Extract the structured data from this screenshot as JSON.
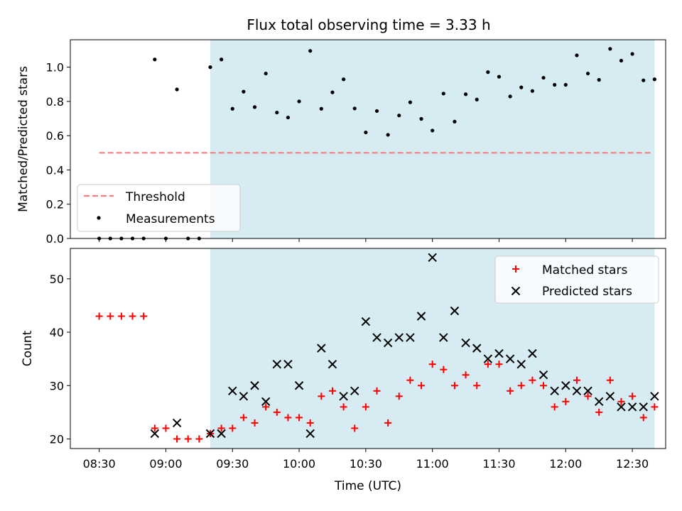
{
  "chart_data": [
    {
      "type": "scatter",
      "title": "Flux total observing time = 3.33 h",
      "xlabel": "",
      "ylabel": "Matched/Predicted stars",
      "xlim": [
        "08:17",
        "12:45"
      ],
      "ylim": [
        0,
        1.16
      ],
      "yticks": [
        0.0,
        0.2,
        0.4,
        0.6,
        0.8,
        1.0
      ],
      "ytick_labels": [
        "0.0",
        "0.2",
        "0.4",
        "0.6",
        "0.8",
        "1.0"
      ],
      "shaded_span": [
        "09:20",
        "12:40"
      ],
      "legend_position": "lower-left",
      "series": [
        {
          "name": "Threshold",
          "kind": "dashed-line",
          "color": "#f08080",
          "x": [
            "08:30",
            "12:39"
          ],
          "y": [
            0.5,
            0.5
          ]
        },
        {
          "name": "Measurements",
          "kind": "dots",
          "color": "#000000",
          "x": [
            "08:30",
            "08:35",
            "08:40",
            "08:45",
            "08:50",
            "08:55",
            "09:00",
            "09:05",
            "09:10",
            "09:15",
            "09:20",
            "09:25",
            "09:30",
            "09:35",
            "09:40",
            "09:45",
            "09:50",
            "09:55",
            "10:00",
            "10:05",
            "10:10",
            "10:15",
            "10:20",
            "10:25",
            "10:30",
            "10:35",
            "10:40",
            "10:45",
            "10:50",
            "10:55",
            "11:00",
            "11:05",
            "11:10",
            "11:15",
            "11:20",
            "11:25",
            "11:30",
            "11:35",
            "11:40",
            "11:45",
            "11:50",
            "11:55",
            "12:00",
            "12:05",
            "12:10",
            "12:15",
            "12:20",
            "12:25",
            "12:30",
            "12:35",
            "12:40"
          ],
          "y": [
            0,
            0,
            0,
            0,
            0,
            1.045,
            0,
            0.87,
            0,
            0,
            1.0,
            1.045,
            0.757,
            0.857,
            0.767,
            0.963,
            0.735,
            0.706,
            0.8,
            1.095,
            0.757,
            0.853,
            0.929,
            0.759,
            0.619,
            0.744,
            0.605,
            0.718,
            0.795,
            0.698,
            0.63,
            0.846,
            0.682,
            0.842,
            0.811,
            0.971,
            0.944,
            0.829,
            0.882,
            0.861,
            0.938,
            0.897,
            0.897,
            1.069,
            0.963,
            0.926,
            1.107,
            1.038,
            1.077,
            0.923,
            0.929
          ]
        }
      ]
    },
    {
      "type": "scatter",
      "title": "",
      "xlabel": "Time (UTC)",
      "ylabel": "Count",
      "xlim": [
        "08:17",
        "12:45"
      ],
      "ylim": [
        18.2,
        55.7
      ],
      "yticks": [
        20,
        30,
        40,
        50
      ],
      "ytick_labels": [
        "20",
        "30",
        "40",
        "50"
      ],
      "xticks": [
        "08:30",
        "09:00",
        "09:30",
        "10:00",
        "10:30",
        "11:00",
        "11:30",
        "12:00",
        "12:30"
      ],
      "shaded_span": [
        "09:20",
        "12:40"
      ],
      "legend_position": "upper-right",
      "series": [
        {
          "name": "Matched stars",
          "marker": "plus",
          "color": "#ff0000",
          "x": [
            "08:30",
            "08:35",
            "08:40",
            "08:45",
            "08:50",
            "08:55",
            "09:00",
            "09:05",
            "09:10",
            "09:15",
            "09:20",
            "09:25",
            "09:30",
            "09:35",
            "09:40",
            "09:45",
            "09:50",
            "09:55",
            "10:00",
            "10:05",
            "10:10",
            "10:15",
            "10:20",
            "10:25",
            "10:30",
            "10:35",
            "10:40",
            "10:45",
            "10:50",
            "10:55",
            "11:00",
            "11:05",
            "11:10",
            "11:15",
            "11:20",
            "11:25",
            "11:30",
            "11:35",
            "11:40",
            "11:45",
            "11:50",
            "11:55",
            "12:00",
            "12:05",
            "12:10",
            "12:15",
            "12:20",
            "12:25",
            "12:30",
            "12:35",
            "12:40"
          ],
          "y": [
            43,
            43,
            43,
            43,
            43,
            22,
            22,
            20,
            20,
            20,
            21,
            22,
            22,
            24,
            23,
            26,
            25,
            24,
            24,
            23,
            28,
            29,
            26,
            22,
            26,
            29,
            23,
            28,
            31,
            30,
            34,
            33,
            30,
            32,
            30,
            34,
            34,
            29,
            30,
            31,
            30,
            26,
            27,
            31,
            28,
            25,
            31,
            27,
            28,
            24,
            26
          ]
        },
        {
          "name": "Predicted stars",
          "marker": "x",
          "color": "#000000",
          "x": [
            "08:55",
            "09:05",
            "09:20",
            "09:25",
            "09:30",
            "09:35",
            "09:40",
            "09:45",
            "09:50",
            "09:55",
            "10:00",
            "10:05",
            "10:10",
            "10:15",
            "10:20",
            "10:25",
            "10:30",
            "10:35",
            "10:40",
            "10:45",
            "10:50",
            "10:55",
            "11:00",
            "11:05",
            "11:10",
            "11:15",
            "11:20",
            "11:25",
            "11:30",
            "11:35",
            "11:40",
            "11:45",
            "11:50",
            "11:55",
            "12:00",
            "12:05",
            "12:10",
            "12:15",
            "12:20",
            "12:25",
            "12:30",
            "12:35",
            "12:40"
          ],
          "y": [
            21,
            23,
            21,
            21,
            29,
            28,
            30,
            27,
            34,
            34,
            30,
            21,
            37,
            34,
            28,
            29,
            42,
            39,
            38,
            39,
            39,
            43,
            54,
            39,
            44,
            38,
            37,
            35,
            36,
            35,
            34,
            36,
            32,
            29,
            30,
            29,
            29,
            27,
            28,
            26,
            26,
            26,
            28
          ]
        }
      ]
    }
  ]
}
